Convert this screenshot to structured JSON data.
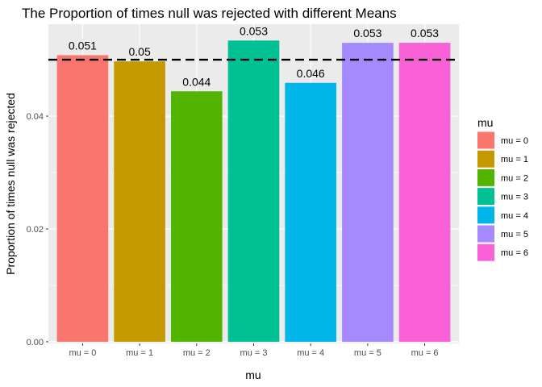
{
  "chart_data": {
    "type": "bar",
    "title": "The Proportion of times null was rejected with different Means",
    "xlabel": "mu",
    "ylabel": "Proportion of times null was rejected",
    "categories": [
      "mu = 0",
      "mu = 1",
      "mu = 2",
      "mu = 3",
      "mu = 4",
      "mu = 5",
      "mu = 6"
    ],
    "values": [
      0.0508,
      0.0497,
      0.0444,
      0.0534,
      0.0459,
      0.053,
      0.053
    ],
    "data_labels": [
      "0.051",
      "0.05",
      "0.044",
      "0.053",
      "0.046",
      "0.053",
      "0.053"
    ],
    "colors": [
      "#F8766D",
      "#C49A00",
      "#53B400",
      "#00C094",
      "#00B6EB",
      "#A58AFF",
      "#FB61D7"
    ],
    "ylim": [
      -0.0003,
      0.0563
    ],
    "yticks": [
      0,
      0.02,
      0.04
    ],
    "ytick_labels": [
      "0.00",
      "0.02",
      "0.04"
    ],
    "reference_line": {
      "y": 0.05,
      "style": "dashed",
      "color": "#000000"
    },
    "legend": {
      "title": "mu",
      "position": "right",
      "entries": [
        "mu = 0",
        "mu = 1",
        "mu = 2",
        "mu = 3",
        "mu = 4",
        "mu = 5",
        "mu = 6"
      ]
    },
    "grid": true,
    "panel_background": "#EBEBEB"
  }
}
